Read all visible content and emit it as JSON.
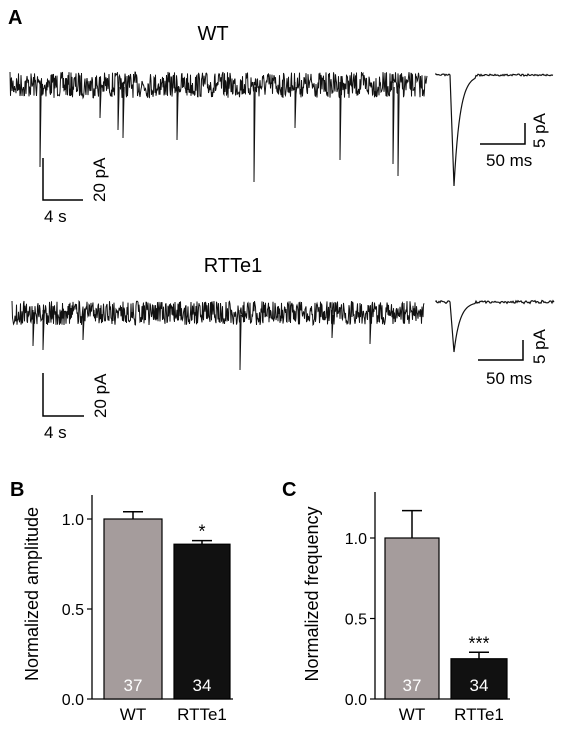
{
  "panel_a": {
    "label": "A",
    "traces": [
      {
        "title": "WT",
        "scale_time": "4 s",
        "scale_amp": "20 pA",
        "avg_scale_time": "50 ms",
        "avg_scale_amp": "5 pA"
      },
      {
        "title": "RTTe1",
        "scale_time": "4 s",
        "scale_amp": "20 pA",
        "avg_scale_time": "50 ms",
        "avg_scale_amp": "5 pA"
      }
    ]
  },
  "colors": {
    "wt": "#a59c9c",
    "rtt": "#111111",
    "trace": "#111111"
  },
  "chart_data": [
    {
      "type": "bar",
      "panel": "B",
      "ylabel": "Normalized amplitude",
      "categories": [
        "WT",
        "RTTe1"
      ],
      "values": [
        1.0,
        0.86
      ],
      "errors": [
        0.04,
        0.02
      ],
      "n": [
        "37",
        "34"
      ],
      "significance": [
        "",
        "*"
      ],
      "ylim": [
        0,
        1.0
      ],
      "yticks": [
        "0.0",
        "0.5",
        "1.0"
      ]
    },
    {
      "type": "bar",
      "panel": "C",
      "ylabel": "Normalized frequency",
      "categories": [
        "WT",
        "RTTe1"
      ],
      "values": [
        1.0,
        0.25
      ],
      "errors": [
        0.17,
        0.04
      ],
      "n": [
        "37",
        "34"
      ],
      "significance": [
        "",
        "***"
      ],
      "ylim": [
        0,
        1.0
      ],
      "yticks": [
        "0.0",
        "0.5",
        "1.0"
      ]
    }
  ]
}
